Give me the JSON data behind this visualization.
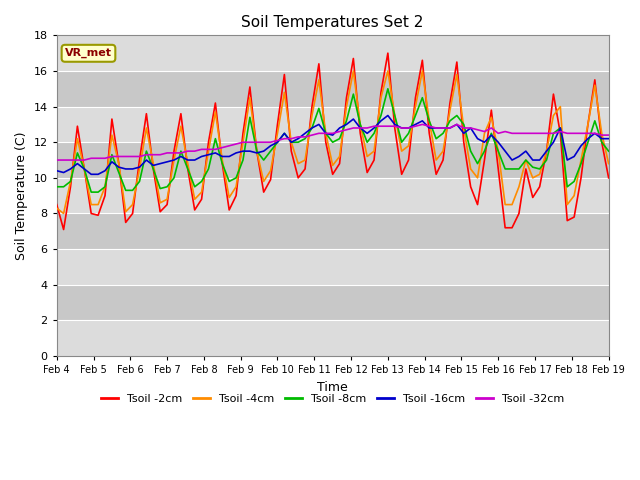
{
  "title": "Soil Temperatures Set 2",
  "xlabel": "Time",
  "ylabel": "Soil Temperature (C)",
  "xlim": [
    0,
    15
  ],
  "ylim": [
    0,
    18
  ],
  "yticks": [
    0,
    2,
    4,
    6,
    8,
    10,
    12,
    14,
    16,
    18
  ],
  "xtick_labels": [
    "Feb 4",
    "Feb 5",
    "Feb 6",
    "Feb 7",
    "Feb 8",
    "Feb 9",
    "Feb 10",
    "Feb 11",
    "Feb 12",
    "Feb 13",
    "Feb 14",
    "Feb 15",
    "Feb 16",
    "Feb 17",
    "Feb 18",
    "Feb 19"
  ],
  "annotation_text": "VR_met",
  "annotation_box_color": "#FFFFCC",
  "annotation_text_color": "#8B0000",
  "annotation_edge_color": "#999900",
  "band_colors": [
    "#DCDCDC",
    "#C8C8C8"
  ],
  "grid_color": "#FFFFFF",
  "series": [
    {
      "label": "Tsoil -2cm",
      "color": "#FF0000",
      "linewidth": 1.2,
      "values": [
        8.5,
        7.1,
        9.5,
        12.9,
        10.5,
        8.0,
        7.9,
        9.0,
        13.3,
        10.8,
        7.5,
        8.0,
        11.0,
        13.6,
        10.5,
        8.1,
        8.5,
        11.5,
        13.6,
        10.5,
        8.2,
        8.8,
        12.0,
        14.2,
        10.8,
        8.2,
        9.0,
        12.5,
        15.1,
        11.5,
        9.2,
        9.9,
        13.0,
        15.8,
        11.5,
        10.0,
        10.5,
        14.0,
        16.4,
        12.0,
        10.2,
        10.8,
        14.5,
        16.7,
        12.5,
        10.3,
        11.0,
        14.8,
        17.0,
        12.8,
        10.2,
        11.0,
        14.5,
        16.6,
        12.5,
        10.2,
        11.0,
        14.2,
        16.5,
        12.0,
        9.5,
        8.5,
        11.0,
        13.8,
        10.5,
        7.2,
        7.2,
        8.0,
        10.5,
        8.9,
        9.5,
        11.5,
        14.7,
        12.5,
        7.6,
        7.8,
        10.0,
        13.0,
        15.5,
        12.0,
        10.0
      ]
    },
    {
      "label": "Tsoil -4cm",
      "color": "#FF8C00",
      "linewidth": 1.2,
      "values": [
        8.3,
        8.0,
        9.8,
        12.2,
        10.5,
        8.5,
        8.5,
        9.5,
        12.4,
        10.8,
        8.1,
        8.5,
        10.5,
        12.8,
        10.8,
        8.6,
        8.8,
        11.0,
        12.9,
        10.8,
        8.8,
        9.2,
        11.5,
        13.7,
        11.0,
        8.9,
        9.5,
        12.0,
        14.5,
        11.5,
        9.8,
        10.4,
        12.5,
        14.8,
        12.0,
        10.8,
        11.0,
        13.5,
        15.5,
        12.5,
        10.7,
        11.2,
        14.0,
        16.0,
        13.0,
        11.2,
        11.5,
        14.5,
        16.0,
        13.5,
        11.5,
        11.8,
        14.0,
        16.0,
        13.2,
        11.0,
        11.5,
        13.8,
        15.8,
        12.8,
        10.5,
        10.0,
        12.5,
        13.4,
        11.5,
        8.5,
        8.5,
        9.5,
        11.0,
        10.0,
        10.2,
        11.5,
        13.5,
        14.0,
        8.5,
        9.0,
        11.0,
        13.0,
        15.2,
        12.5,
        10.8
      ]
    },
    {
      "label": "Tsoil -8cm",
      "color": "#00BB00",
      "linewidth": 1.2,
      "values": [
        9.5,
        9.5,
        9.8,
        11.4,
        10.5,
        9.2,
        9.2,
        9.5,
        11.3,
        10.3,
        9.3,
        9.3,
        9.8,
        11.5,
        10.5,
        9.4,
        9.5,
        10.0,
        11.5,
        10.5,
        9.5,
        9.8,
        10.5,
        12.2,
        10.8,
        9.8,
        10.0,
        11.0,
        13.4,
        11.5,
        11.0,
        11.5,
        12.0,
        12.5,
        12.0,
        12.0,
        12.2,
        12.8,
        13.9,
        12.5,
        12.0,
        12.2,
        13.2,
        14.7,
        13.0,
        12.0,
        12.5,
        13.5,
        15.0,
        13.5,
        12.0,
        12.5,
        13.5,
        14.5,
        13.2,
        12.2,
        12.5,
        13.2,
        13.5,
        13.0,
        11.5,
        10.8,
        11.5,
        12.5,
        11.5,
        10.5,
        10.5,
        10.5,
        11.0,
        10.6,
        10.5,
        11.0,
        12.5,
        12.8,
        9.5,
        9.8,
        10.8,
        12.0,
        13.2,
        12.0,
        11.5
      ]
    },
    {
      "label": "Tsoil -16cm",
      "color": "#0000CC",
      "linewidth": 1.2,
      "values": [
        10.4,
        10.3,
        10.5,
        10.8,
        10.5,
        10.2,
        10.2,
        10.4,
        10.9,
        10.6,
        10.5,
        10.5,
        10.6,
        11.0,
        10.7,
        10.8,
        10.9,
        11.0,
        11.2,
        11.0,
        11.0,
        11.2,
        11.3,
        11.4,
        11.2,
        11.2,
        11.4,
        11.5,
        11.5,
        11.4,
        11.5,
        11.8,
        12.0,
        12.5,
        12.0,
        12.2,
        12.5,
        12.8,
        13.0,
        12.5,
        12.4,
        12.8,
        13.0,
        13.3,
        12.8,
        12.5,
        12.8,
        13.2,
        13.5,
        13.0,
        12.8,
        12.8,
        13.0,
        13.2,
        12.8,
        12.8,
        12.8,
        12.8,
        13.0,
        12.5,
        12.8,
        12.2,
        12.0,
        12.4,
        12.0,
        11.5,
        11.0,
        11.2,
        11.5,
        11.0,
        11.0,
        11.5,
        12.0,
        12.8,
        11.0,
        11.2,
        11.8,
        12.2,
        12.5,
        12.2,
        12.2
      ]
    },
    {
      "label": "Tsoil -32cm",
      "color": "#CC00CC",
      "linewidth": 1.2,
      "values": [
        11.0,
        11.0,
        11.0,
        11.0,
        11.0,
        11.1,
        11.1,
        11.1,
        11.2,
        11.2,
        11.2,
        11.2,
        11.2,
        11.3,
        11.3,
        11.3,
        11.4,
        11.4,
        11.4,
        11.5,
        11.5,
        11.6,
        11.6,
        11.6,
        11.7,
        11.8,
        11.9,
        12.0,
        12.0,
        12.0,
        12.0,
        12.0,
        12.1,
        12.2,
        12.2,
        12.3,
        12.3,
        12.4,
        12.5,
        12.5,
        12.5,
        12.6,
        12.7,
        12.8,
        12.8,
        12.8,
        12.9,
        12.9,
        12.9,
        12.9,
        12.8,
        12.8,
        12.9,
        13.0,
        12.9,
        12.8,
        12.8,
        12.8,
        13.0,
        12.8,
        12.8,
        12.7,
        12.6,
        12.8,
        12.5,
        12.6,
        12.5,
        12.5,
        12.5,
        12.5,
        12.5,
        12.5,
        12.5,
        12.6,
        12.5,
        12.5,
        12.5,
        12.5,
        12.5,
        12.4,
        12.4
      ]
    }
  ]
}
